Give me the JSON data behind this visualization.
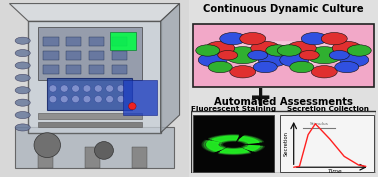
{
  "top_title": "Continuous Dynamic Culture",
  "bottom_title": "Automated Assessments",
  "plus_symbol": "+",
  "fluor_label": "Fluorescent Staining",
  "secret_label": "Secretion Collection",
  "bg_color": "#e8e8e8",
  "pink_bg": "#f2a8c8",
  "pink_streak": "#fce0ec",
  "cell_red": "#e03030",
  "cell_blue": "#3050e0",
  "cell_green": "#30b030",
  "cell_outline": "#111111",
  "graph_line_color": "#ff2020",
  "secretion_label": "Secretion",
  "time_label": "Time",
  "stimulus_label": "Stimulus",
  "stimulus_color": "#888888",
  "fluor_green": "#22ee22",
  "fluor_bg": "#050505",
  "overall_bg": "#e0e0e0"
}
